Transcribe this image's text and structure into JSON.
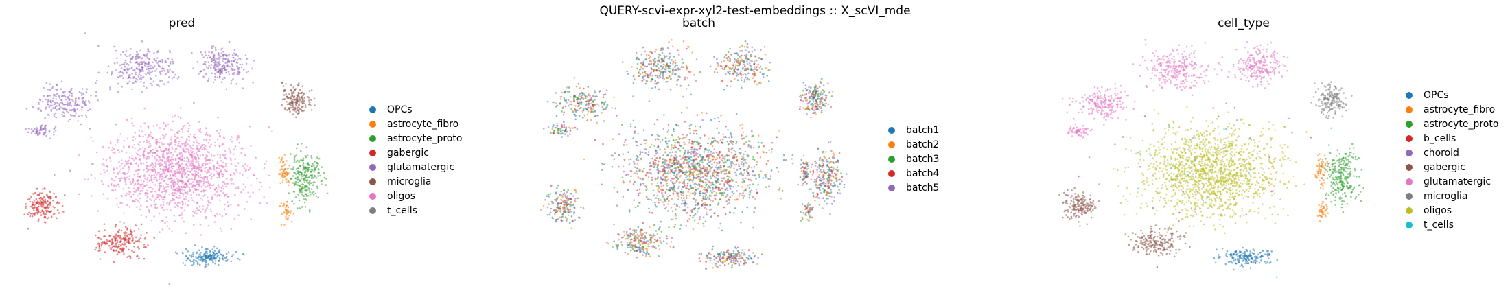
{
  "suptitle": "QUERY-scvi-expr-xyl2-test-embeddings :: X_scVI_mde",
  "chart_data": [
    {
      "type": "scatter",
      "title": "pred",
      "xlabel": "",
      "ylabel": "",
      "grid": false,
      "legend_position": "right",
      "series": [
        {
          "name": "OPCs",
          "color": "#1f77b4",
          "cluster": "bottom"
        },
        {
          "name": "astrocyte_fibro",
          "color": "#ff7f0e",
          "cluster": "right-edge"
        },
        {
          "name": "astrocyte_proto",
          "color": "#2ca02c",
          "cluster": "right"
        },
        {
          "name": "gabergic",
          "color": "#d62728",
          "cluster": "left-bottom"
        },
        {
          "name": "glutamatergic",
          "color": "#9467bd",
          "cluster": "top-left"
        },
        {
          "name": "microglia",
          "color": "#8c564b",
          "cluster": "right-top"
        },
        {
          "name": "oligos",
          "color": "#e377c2",
          "cluster": "center"
        },
        {
          "name": "t_cells",
          "color": "#7f7f7f",
          "cluster": "sparse"
        }
      ]
    },
    {
      "type": "scatter",
      "title": "batch",
      "xlabel": "",
      "ylabel": "",
      "grid": false,
      "legend_position": "right",
      "series": [
        {
          "name": "batch1",
          "color": "#1f77b4"
        },
        {
          "name": "batch2",
          "color": "#ff7f0e"
        },
        {
          "name": "batch3",
          "color": "#2ca02c"
        },
        {
          "name": "batch4",
          "color": "#d62728"
        },
        {
          "name": "batch5",
          "color": "#9467bd"
        }
      ]
    },
    {
      "type": "scatter",
      "title": "cell_type",
      "xlabel": "",
      "ylabel": "",
      "grid": false,
      "legend_position": "right",
      "series": [
        {
          "name": "OPCs",
          "color": "#1f77b4",
          "cluster": "bottom"
        },
        {
          "name": "astrocyte_fibro",
          "color": "#ff7f0e",
          "cluster": "right-edge"
        },
        {
          "name": "astrocyte_proto",
          "color": "#2ca02c",
          "cluster": "right"
        },
        {
          "name": "b_cells",
          "color": "#d62728",
          "cluster": "sparse"
        },
        {
          "name": "choroid",
          "color": "#9467bd",
          "cluster": "sparse"
        },
        {
          "name": "gabergic",
          "color": "#8c564b",
          "cluster": "left-bottom"
        },
        {
          "name": "glutamatergic",
          "color": "#e377c2",
          "cluster": "top-left"
        },
        {
          "name": "microglia",
          "color": "#7f7f7f",
          "cluster": "right-top"
        },
        {
          "name": "oligos",
          "color": "#bcbd22",
          "cluster": "center"
        },
        {
          "name": "t_cells",
          "color": "#17becf",
          "cluster": "sparse"
        }
      ]
    }
  ]
}
